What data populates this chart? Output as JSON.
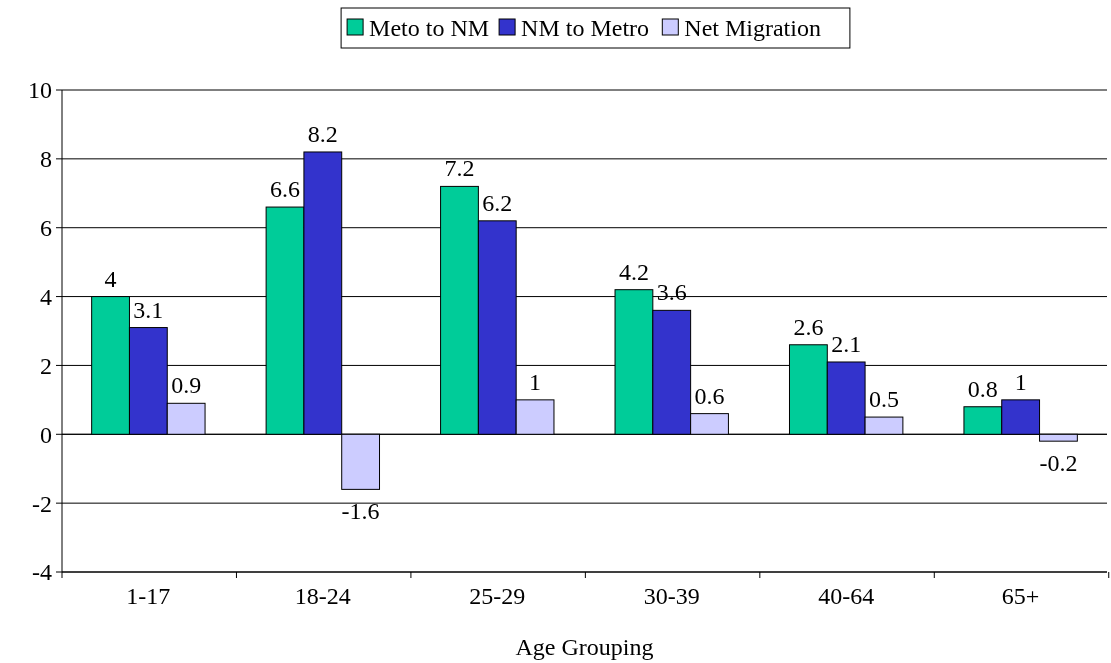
{
  "chart_data": {
    "type": "bar",
    "xlabel": "Age Grouping",
    "categories": [
      "1-17",
      "18-24",
      "25-29",
      "30-39",
      "40-64",
      "65+"
    ],
    "series": [
      {
        "name": "Meto to NM",
        "color": "#00cc99",
        "values": [
          4,
          6.6,
          7.2,
          4.2,
          2.6,
          0.8
        ]
      },
      {
        "name": "NM to Metro",
        "color": "#3333cc",
        "values": [
          3.1,
          8.2,
          6.2,
          3.6,
          2.1,
          1
        ]
      },
      {
        "name": "Net Migration",
        "color": "#ccccff",
        "values": [
          0.9,
          -1.6,
          1,
          0.6,
          0.5,
          -0.2
        ]
      }
    ],
    "ylim": [
      -4,
      10
    ],
    "yticks": [
      -4,
      -2,
      0,
      2,
      4,
      6,
      8,
      10
    ],
    "grid": "y",
    "legend": "top",
    "data_labels": true
  }
}
